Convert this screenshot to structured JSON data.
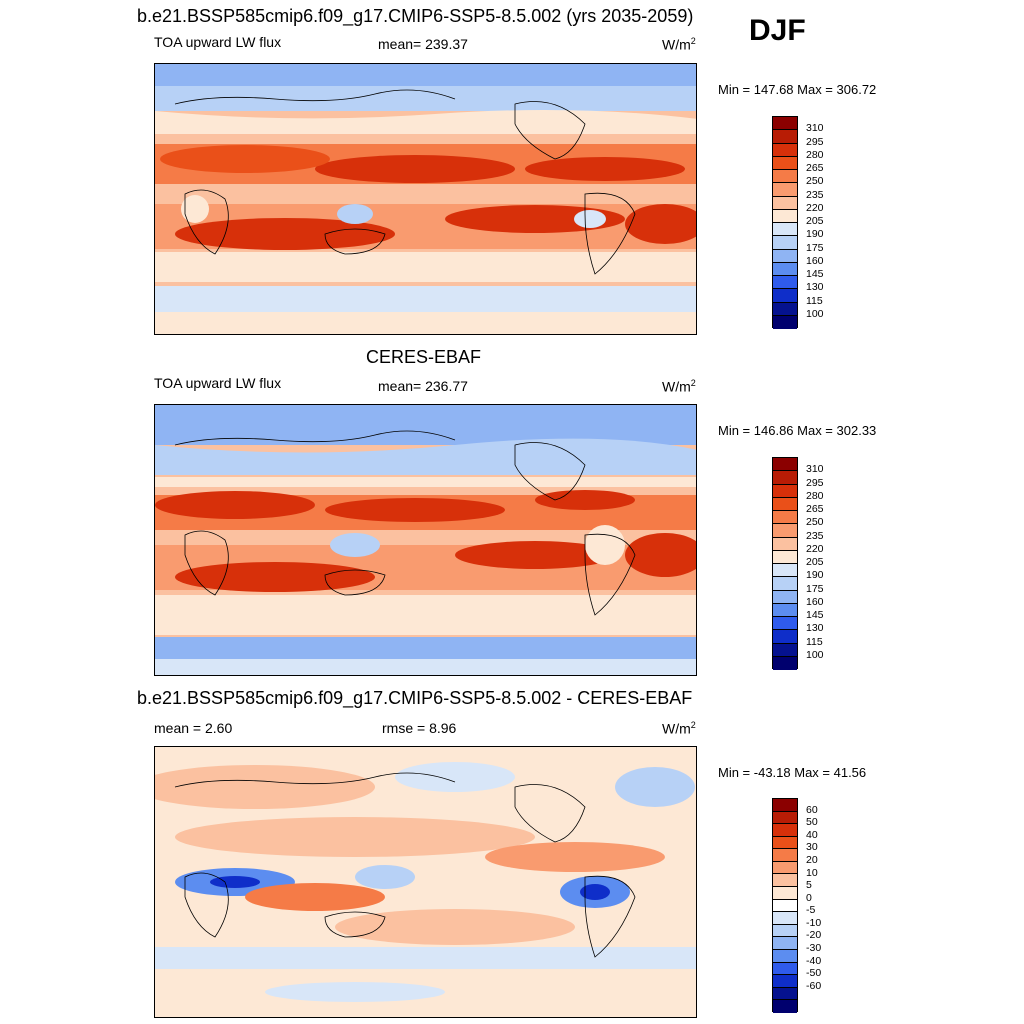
{
  "season": "DJF",
  "panels": [
    {
      "title": "b.e21.BSSP585cmip6.f09_g17.CMIP6-SSP5-8.5.002 (yrs 2035-2059)",
      "variable": "TOA upward LW flux",
      "mean_text": "mean= 239.37",
      "units": "W/m",
      "units_sup": "2",
      "minmax": "Min = 147.68 Max = 306.72",
      "colorbar_labels": [
        "310",
        "295",
        "280",
        "265",
        "250",
        "235",
        "220",
        "205",
        "190",
        "175",
        "160",
        "145",
        "130",
        "115",
        "100"
      ]
    },
    {
      "title": "CERES-EBAF",
      "variable": "TOA upward LW flux",
      "mean_text": "mean= 236.77",
      "units": "W/m",
      "units_sup": "2",
      "minmax": "Min = 146.86 Max = 302.33",
      "colorbar_labels": [
        "310",
        "295",
        "280",
        "265",
        "250",
        "235",
        "220",
        "205",
        "190",
        "175",
        "160",
        "145",
        "130",
        "115",
        "100"
      ]
    },
    {
      "title": "b.e21.BSSP585cmip6.f09_g17.CMIP6-SSP5-8.5.002 - CERES-EBAF",
      "mean_text": "mean =   2.60",
      "rmse_text": "rmse =   8.96",
      "units": "W/m",
      "units_sup": "2",
      "minmax": "Min = -43.18 Max =  41.56",
      "colorbar_labels": [
        "60",
        "50",
        "40",
        "30",
        "20",
        "10",
        "5",
        "0",
        "-5",
        "-10",
        "-20",
        "-30",
        "-40",
        "-50",
        "-60"
      ]
    }
  ],
  "colors": {
    "abs_scale": [
      "#8b0000",
      "#b81c05",
      "#d7300a",
      "#ea5019",
      "#f57b47",
      "#f99b6f",
      "#fbc1a0",
      "#fde8d5",
      "#d8e6f8",
      "#b7d1f6",
      "#8fb4f3",
      "#5c8df0",
      "#2f5bec",
      "#0f2ec9",
      "#05128f",
      "#00006e"
    ],
    "diff_scale": [
      "#8b0000",
      "#b81c05",
      "#d7300a",
      "#ea5019",
      "#f57b47",
      "#f99b6f",
      "#fbc1a0",
      "#fde8d5",
      "#ffffff",
      "#d8e6f8",
      "#b7d1f6",
      "#8fb4f3",
      "#5c8df0",
      "#2f5bec",
      "#0f2ec9",
      "#05128f",
      "#00006e"
    ]
  }
}
